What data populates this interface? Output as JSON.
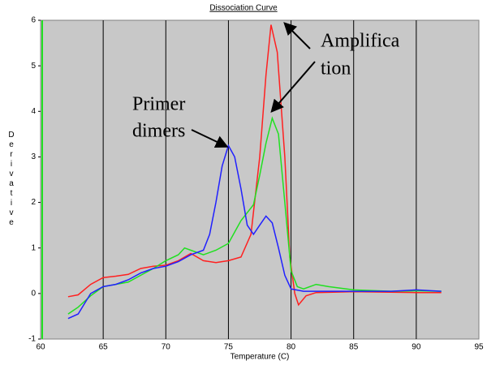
{
  "chart_data": {
    "type": "line",
    "title": "Dissociation Curve",
    "xlabel": "Temperature (C)",
    "ylabel": "Derivative",
    "xlim": [
      60,
      95
    ],
    "xticks": [
      60,
      65,
      70,
      75,
      80,
      85,
      90,
      95
    ],
    "ylim": [
      -1,
      6
    ],
    "yticks": [
      -1,
      0,
      1,
      2,
      3,
      4,
      5,
      6
    ],
    "grid": true,
    "annotations": [
      "Amplifica",
      "tion",
      "Primer",
      "dimers"
    ],
    "series": [
      {
        "name": "red",
        "color": "#ff2020",
        "x": [
          62.2,
          63,
          64,
          65,
          66,
          67,
          68,
          69,
          70,
          71,
          72,
          73,
          74,
          75,
          76,
          76.8,
          77.5,
          78,
          78.4,
          78.9,
          79.5,
          79.9,
          80.3,
          80.6,
          81.2,
          82,
          85,
          90,
          92
        ],
        "values": [
          -0.07,
          -0.03,
          0.2,
          0.35,
          0.38,
          0.42,
          0.55,
          0.6,
          0.62,
          0.72,
          0.88,
          0.72,
          0.68,
          0.72,
          0.8,
          1.3,
          3.0,
          4.8,
          5.9,
          5.3,
          3.0,
          0.8,
          0.0,
          -0.25,
          -0.05,
          0.02,
          0.04,
          0.02,
          0.02
        ]
      },
      {
        "name": "green",
        "color": "#20e020",
        "x": [
          62.2,
          63,
          64,
          65,
          66,
          67,
          68,
          69,
          70,
          71,
          71.5,
          72,
          73,
          74,
          75,
          75.5,
          76,
          77,
          77.5,
          78,
          78.5,
          79,
          79.5,
          80,
          80.5,
          81,
          82,
          83,
          85,
          88,
          90,
          92
        ],
        "values": [
          -0.45,
          -0.3,
          -0.05,
          0.15,
          0.2,
          0.25,
          0.4,
          0.55,
          0.72,
          0.85,
          1.0,
          0.95,
          0.85,
          0.95,
          1.1,
          1.35,
          1.6,
          1.95,
          2.6,
          3.3,
          3.85,
          3.5,
          2.0,
          0.5,
          0.15,
          0.1,
          0.2,
          0.15,
          0.08,
          0.05,
          0.06,
          0.05
        ]
      },
      {
        "name": "blue",
        "color": "#2020ff",
        "x": [
          62.2,
          63,
          64,
          65,
          66,
          67,
          68,
          69,
          70,
          71,
          72,
          73,
          73.5,
          74,
          74.5,
          75,
          75.5,
          76,
          76.5,
          77,
          77.5,
          78,
          78.5,
          79,
          79.5,
          80,
          81,
          83,
          85,
          88,
          90,
          92
        ],
        "values": [
          -0.55,
          -0.45,
          0.0,
          0.15,
          0.2,
          0.3,
          0.45,
          0.55,
          0.6,
          0.7,
          0.85,
          0.95,
          1.3,
          2.0,
          2.8,
          3.25,
          3.0,
          2.3,
          1.5,
          1.3,
          1.5,
          1.7,
          1.55,
          1.0,
          0.4,
          0.1,
          0.05,
          0.05,
          0.05,
          0.05,
          0.08,
          0.05
        ]
      }
    ]
  }
}
